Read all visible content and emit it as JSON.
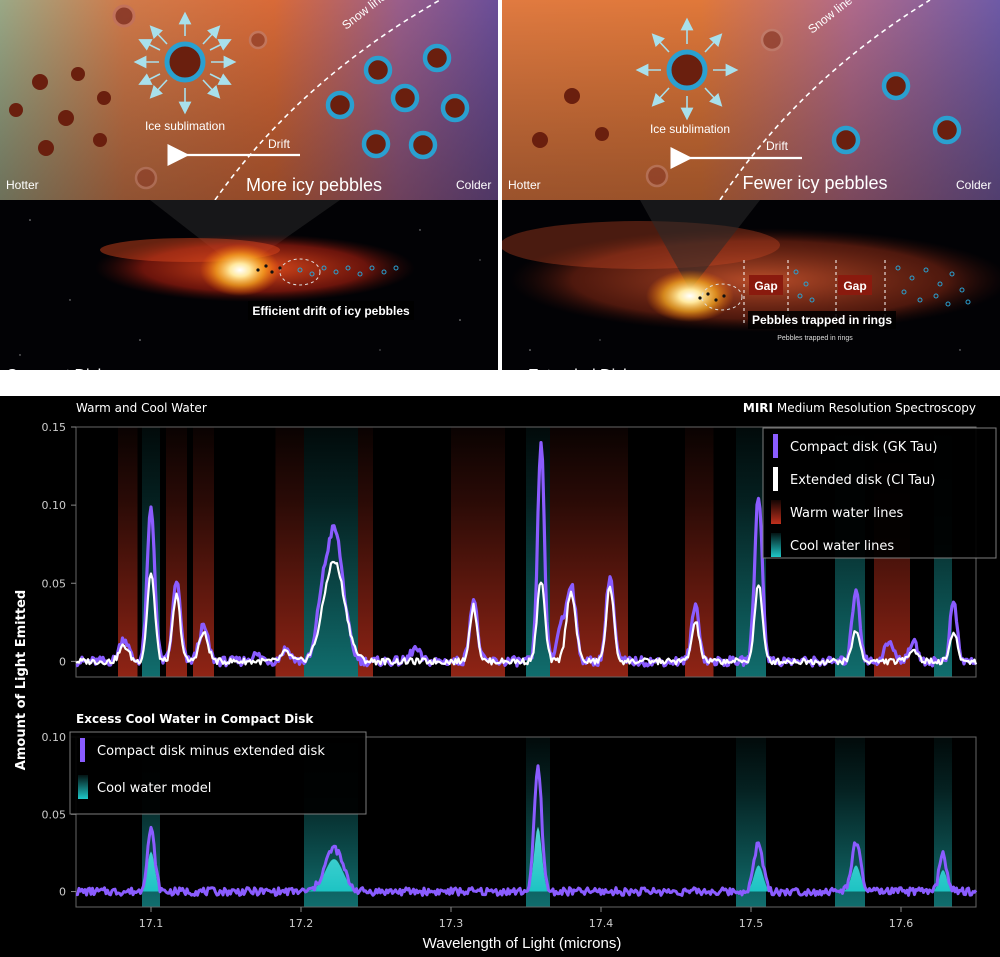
{
  "colors": {
    "compact": "#8a5cff",
    "extended": "#ffffff",
    "warm": "#c0301c",
    "cool": "#1ec8c8",
    "axis": "#888888",
    "sublimation_arrows": "#a8e0ec",
    "ice_ring": "#2aa0d0",
    "pebble": "#6a1f0e"
  },
  "illustration": {
    "left": {
      "snow_line": "Snow line",
      "sublimation": "Ice sublimation",
      "drift": "Drift",
      "hotter": "Hotter",
      "colder": "Colder",
      "headline": "More icy pebbles",
      "caption": "Efficient drift of icy pebbles",
      "disk_label": "Compact Disk"
    },
    "right": {
      "snow_line": "Snow line",
      "sublimation": "Ice sublimation",
      "drift": "Drift",
      "hotter": "Hotter",
      "colder": "Colder",
      "headline": "Fewer icy pebbles",
      "gap1": "Gap",
      "gap2": "Gap",
      "caption": "Pebbles trapped in rings",
      "caption_small": "Pebbles trapped in rings",
      "disk_label": "Extended Disk"
    }
  },
  "chart_data": [
    {
      "type": "line",
      "title": "Warm and Cool Water",
      "subtitle_bold": "MIRI",
      "subtitle": "Medium Resolution Spectroscopy",
      "xlabel": "Wavelength of Light (microns)",
      "ylabel": "Amount of Light Emitted",
      "xlim": [
        17.05,
        17.65
      ],
      "ylim": [
        -0.01,
        0.15
      ],
      "yticks": [
        "0",
        "0.05",
        "0.10",
        "0.15"
      ],
      "legend_position": "top-right",
      "legend": [
        {
          "label": "Compact disk (GK Tau)",
          "kind": "line",
          "color": "#8a5cff"
        },
        {
          "label": "Extended disk (CI Tau)",
          "kind": "line",
          "color": "#ffffff"
        },
        {
          "label": "Warm water lines",
          "kind": "band",
          "color": "#c0301c"
        },
        {
          "label": "Cool water lines",
          "kind": "band",
          "color": "#1ec8c8"
        }
      ],
      "bands": [
        {
          "type": "warm",
          "x": [
            17.078,
            17.091
          ]
        },
        {
          "type": "cool",
          "x": [
            17.094,
            17.106
          ]
        },
        {
          "type": "warm",
          "x": [
            17.11,
            17.124
          ]
        },
        {
          "type": "warm",
          "x": [
            17.128,
            17.142
          ]
        },
        {
          "type": "warm",
          "x": [
            17.183,
            17.202
          ]
        },
        {
          "type": "cool",
          "x": [
            17.202,
            17.238
          ]
        },
        {
          "type": "warm",
          "x": [
            17.238,
            17.248
          ]
        },
        {
          "type": "warm",
          "x": [
            17.3,
            17.336
          ]
        },
        {
          "type": "cool",
          "x": [
            17.35,
            17.366
          ]
        },
        {
          "type": "warm",
          "x": [
            17.366,
            17.402
          ]
        },
        {
          "type": "warm",
          "x": [
            17.402,
            17.418
          ]
        },
        {
          "type": "warm",
          "x": [
            17.456,
            17.475
          ]
        },
        {
          "type": "cool",
          "x": [
            17.49,
            17.51
          ]
        },
        {
          "type": "cool",
          "x": [
            17.556,
            17.576
          ]
        },
        {
          "type": "warm",
          "x": [
            17.582,
            17.606
          ]
        },
        {
          "type": "cool",
          "x": [
            17.622,
            17.634
          ]
        }
      ],
      "series": [
        {
          "name": "Compact disk (GK Tau)",
          "peaks": [
            [
              17.082,
              0.015,
              0.003
            ],
            [
              17.1,
              0.098,
              0.0025
            ],
            [
              17.117,
              0.052,
              0.0025
            ],
            [
              17.135,
              0.022,
              0.003
            ],
            [
              17.17,
              0.004,
              0.004
            ],
            [
              17.19,
              0.008,
              0.003
            ],
            [
              17.213,
              0.018,
              0.003
            ],
            [
              17.222,
              0.085,
              0.006
            ],
            [
              17.276,
              0.008,
              0.003
            ],
            [
              17.315,
              0.04,
              0.0025
            ],
            [
              17.36,
              0.14,
              0.0022
            ],
            [
              17.373,
              0.022,
              0.0025
            ],
            [
              17.38,
              0.05,
              0.003
            ],
            [
              17.406,
              0.055,
              0.0025
            ],
            [
              17.463,
              0.036,
              0.0025
            ],
            [
              17.505,
              0.107,
              0.0025
            ],
            [
              17.57,
              0.047,
              0.0025
            ],
            [
              17.592,
              0.012,
              0.003
            ],
            [
              17.608,
              0.012,
              0.003
            ],
            [
              17.635,
              0.039,
              0.0022
            ]
          ]
        },
        {
          "name": "Extended disk (CI Tau)",
          "peaks": [
            [
              17.082,
              0.01,
              0.003
            ],
            [
              17.1,
              0.057,
              0.0025
            ],
            [
              17.117,
              0.042,
              0.0025
            ],
            [
              17.135,
              0.018,
              0.003
            ],
            [
              17.19,
              0.006,
              0.003
            ],
            [
              17.222,
              0.064,
              0.007
            ],
            [
              17.315,
              0.035,
              0.0025
            ],
            [
              17.36,
              0.052,
              0.0025
            ],
            [
              17.38,
              0.045,
              0.003
            ],
            [
              17.406,
              0.048,
              0.0025
            ],
            [
              17.463,
              0.025,
              0.0025
            ],
            [
              17.505,
              0.05,
              0.0025
            ],
            [
              17.57,
              0.02,
              0.0025
            ],
            [
              17.608,
              0.008,
              0.003
            ],
            [
              17.635,
              0.018,
              0.0025
            ]
          ]
        }
      ]
    },
    {
      "type": "line",
      "title": "Excess Cool Water in Compact Disk",
      "xlabel": "Wavelength of Light (microns)",
      "ylabel": "Amount of Light Emitted",
      "xlim": [
        17.05,
        17.65
      ],
      "ylim": [
        -0.01,
        0.1
      ],
      "yticks": [
        "0",
        "0.05",
        "0.10"
      ],
      "xticks": [
        "17.1",
        "17.2",
        "17.3",
        "17.4",
        "17.5",
        "17.6"
      ],
      "legend_position": "top-left",
      "legend": [
        {
          "label": "Compact disk minus extended disk",
          "kind": "line",
          "color": "#8a5cff"
        },
        {
          "label": "Cool water model",
          "kind": "band",
          "color": "#1ec8c8"
        }
      ],
      "bands": [
        {
          "type": "cool",
          "x": [
            17.094,
            17.106
          ]
        },
        {
          "type": "cool",
          "x": [
            17.202,
            17.238
          ]
        },
        {
          "type": "cool",
          "x": [
            17.35,
            17.366
          ]
        },
        {
          "type": "cool",
          "x": [
            17.49,
            17.51
          ]
        },
        {
          "type": "cool",
          "x": [
            17.556,
            17.576
          ]
        },
        {
          "type": "cool",
          "x": [
            17.622,
            17.634
          ]
        }
      ],
      "series": [
        {
          "name": "Compact disk minus extended disk",
          "peaks": [
            [
              17.1,
              0.04,
              0.0025
            ],
            [
              17.222,
              0.028,
              0.006
            ],
            [
              17.358,
              0.08,
              0.0025
            ],
            [
              17.505,
              0.031,
              0.003
            ],
            [
              17.57,
              0.031,
              0.003
            ],
            [
              17.628,
              0.024,
              0.0025
            ]
          ]
        },
        {
          "name": "Cool water model",
          "peaks": [
            [
              17.1,
              0.026,
              0.0025
            ],
            [
              17.222,
              0.021,
              0.006
            ],
            [
              17.358,
              0.042,
              0.0025
            ],
            [
              17.505,
              0.017,
              0.003
            ],
            [
              17.57,
              0.017,
              0.003
            ],
            [
              17.628,
              0.014,
              0.0025
            ]
          ]
        }
      ]
    }
  ]
}
